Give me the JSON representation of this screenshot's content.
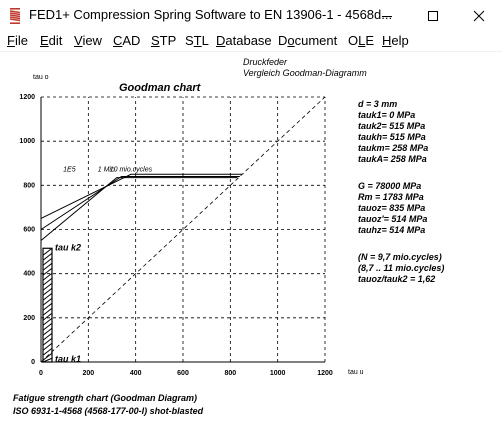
{
  "window": {
    "title": "FED1+  Compression Spring Software to EN 13906-1  -  4568d...",
    "minimize": "minimize",
    "maximize": "maximize",
    "close": "close"
  },
  "menu": {
    "items": [
      {
        "pre": "",
        "ul": "F",
        "post": "ile"
      },
      {
        "pre": "",
        "ul": "E",
        "post": "dit"
      },
      {
        "pre": "",
        "ul": "V",
        "post": "iew"
      },
      {
        "pre": "",
        "ul": "C",
        "post": "AD"
      },
      {
        "pre": "",
        "ul": "S",
        "post": "TP"
      },
      {
        "pre": "S",
        "ul": "T",
        "post": "L"
      },
      {
        "pre": "",
        "ul": "D",
        "post": "atabase"
      },
      {
        "pre": "D",
        "ul": "o",
        "post": "cument"
      },
      {
        "pre": "O",
        "ul": "L",
        "post": "E"
      },
      {
        "pre": "",
        "ul": "H",
        "post": "elp"
      }
    ]
  },
  "header": {
    "line1": "Druckfeder",
    "line2": "Vergleich Goodman-Diagramm"
  },
  "chart_data": {
    "type": "line",
    "title": "Goodman chart",
    "xlabel": "tau u",
    "ylabel": "tau o",
    "xlim": [
      0,
      1200
    ],
    "ylim": [
      0,
      1200
    ],
    "xticks": [
      0,
      200,
      400,
      600,
      800,
      1000,
      1200
    ],
    "yticks": [
      0,
      200,
      400,
      600,
      800,
      1000,
      1200
    ],
    "grid": true,
    "diagonal": [
      [
        0,
        0
      ],
      [
        1200,
        1200
      ]
    ],
    "cycle_labels": [
      "1E5",
      "1 Mio.",
      "10 mio.cycles"
    ],
    "series": [
      {
        "name": "1E5",
        "x": [
          0,
          380,
          850
        ],
        "y": [
          650,
          850,
          850
        ]
      },
      {
        "name": "1 Mio.",
        "x": [
          0,
          340,
          840
        ],
        "y": [
          600,
          840,
          840
        ]
      },
      {
        "name": "10 mio.cycles",
        "x": [
          0,
          320,
          830
        ],
        "y": [
          550,
          835,
          835
        ]
      }
    ],
    "stress_range": {
      "x": 0,
      "tau_k1": 0,
      "tau_k2": 515
    },
    "point_labels": [
      "tau k2",
      "tau k1"
    ]
  },
  "parameters": [
    "d  = 3 mm",
    "tauk1=    0 MPa",
    "tauk2=  515 MPa",
    "taukh=  515 MPa",
    "taukm=  258 MPa",
    "taukA=  258 MPa",
    "G  =  78000 MPa",
    "Rm  =  1783 MPa",
    "tauoz=  835 MPa",
    "tauoz'=  514 MPa",
    "tauhz=  514 MPa",
    "(N = 9,7 mio.cycles)",
    "(8,7 .. 11 mio.cycles)",
    "tauoz/tauk2 = 1,62"
  ],
  "footer": {
    "line1": "Fatigue strength chart (Goodman Diagram)",
    "line2": "ISO 6931-1-4568 (4568-177-00-I) shot-blasted"
  },
  "colors": {
    "icon_red": "#c0392b",
    "chart_lines": "#000000"
  }
}
